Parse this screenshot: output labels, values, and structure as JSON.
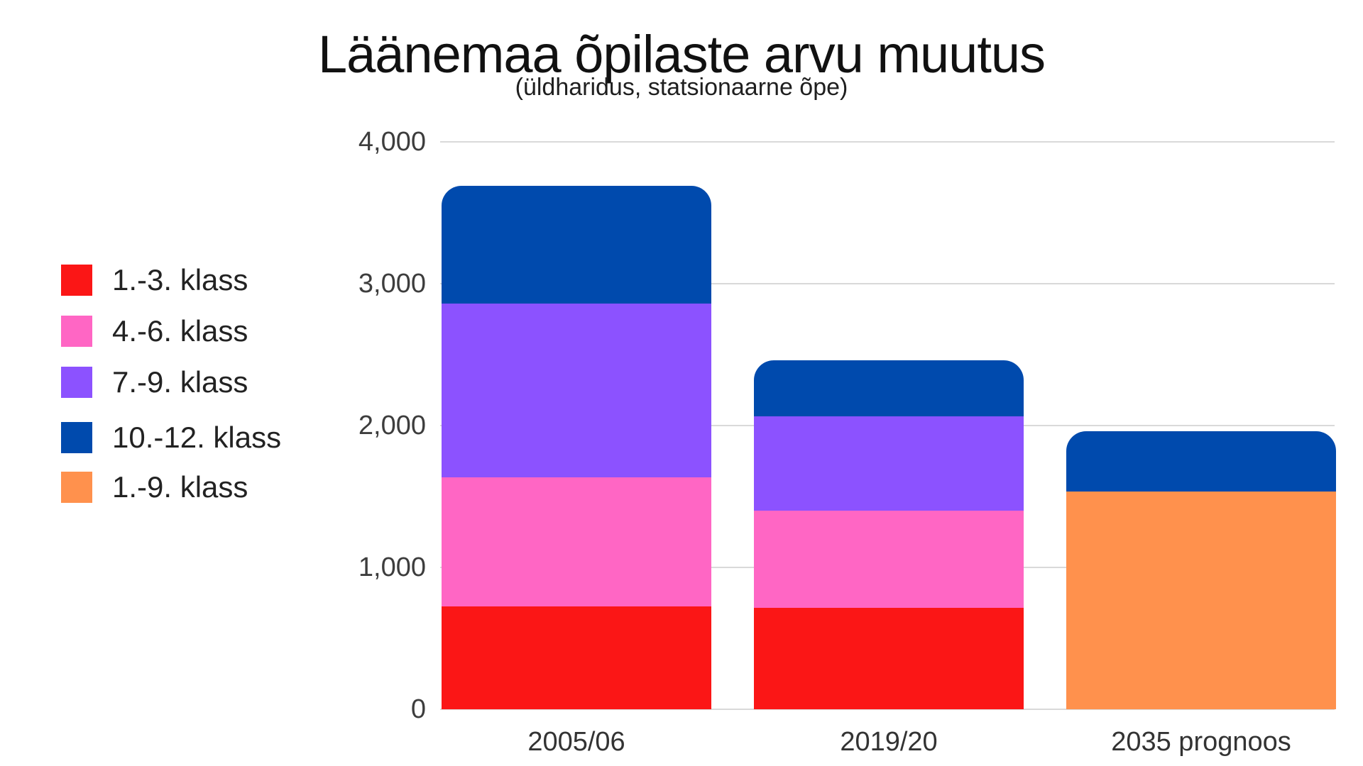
{
  "chart_data": {
    "type": "bar",
    "stacked": true,
    "title": "Läänemaa õpilaste arvu muutus",
    "subtitle": "(üldharidus, statsionaarne õpe)",
    "categories": [
      "2005/06",
      "2019/20",
      "2035 prognoos"
    ],
    "series": [
      {
        "name": "1.-3. klass",
        "color": "#fb1616",
        "values": [
          725,
          715,
          0
        ]
      },
      {
        "name": "4.-6. klass",
        "color": "#ff66c4",
        "values": [
          910,
          685,
          0
        ]
      },
      {
        "name": "7.-9. klass",
        "color": "#8c52ff",
        "values": [
          1225,
          665,
          0
        ]
      },
      {
        "name": "1.-9. klass",
        "color": "#ff914d",
        "values": [
          0,
          0,
          1535
        ]
      },
      {
        "name": "10.-12. klass",
        "color": "#004aad",
        "values": [
          830,
          395,
          425
        ]
      }
    ],
    "legend_order": [
      0,
      1,
      2,
      4,
      3
    ],
    "totals": [
      3690,
      2460,
      1960
    ],
    "ylim": [
      0,
      4000
    ],
    "ytick_values": [
      0,
      1000,
      2000,
      3000,
      4000
    ],
    "yticks": [
      "0",
      "1,000",
      "2,000",
      "3,000",
      "4,000"
    ],
    "grid": true,
    "legend_position": "left",
    "colors": {
      "background": "#ffffff",
      "gridline": "#d9d9d9",
      "title_text": "#111111",
      "tick_text": "#3d3d3d"
    }
  }
}
